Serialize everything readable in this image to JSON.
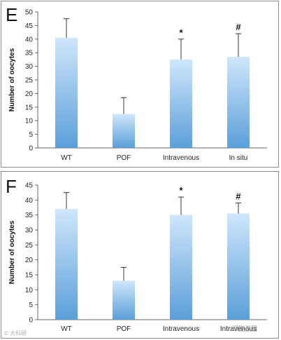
{
  "chart_data": [
    {
      "panel_label": "E",
      "type": "bar",
      "categories": [
        "WT",
        "POF",
        "Intravenous",
        "In situ"
      ],
      "values": [
        40.5,
        12.5,
        32.5,
        33.5
      ],
      "errors": [
        7,
        6,
        7.5,
        8.5
      ],
      "annotations": [
        "",
        "",
        "*",
        "#"
      ],
      "ylabel": "Number of oocytes",
      "ylim": [
        0,
        50
      ],
      "yticks": [
        0,
        5,
        10,
        15,
        20,
        25,
        30,
        35,
        40,
        45,
        50
      ],
      "grid": false,
      "bar_color": "#5b9fd9"
    },
    {
      "panel_label": "F",
      "type": "bar",
      "categories": [
        "WT",
        "POF",
        "Intravenous",
        "Intravenous"
      ],
      "values": [
        37,
        13,
        35,
        35.5
      ],
      "errors": [
        5.5,
        4.5,
        6,
        3.5
      ],
      "annotations": [
        "",
        "",
        "*",
        "#"
      ],
      "ylabel": "Number of oocytes",
      "ylim": [
        0,
        45
      ],
      "yticks": [
        0,
        5,
        10,
        15,
        20,
        25,
        30,
        35,
        40,
        45
      ],
      "grid": false,
      "bar_color": "#5b9fd9"
    }
  ],
  "watermark_left": "© 大科研",
  "watermark_right": "细胞王国"
}
